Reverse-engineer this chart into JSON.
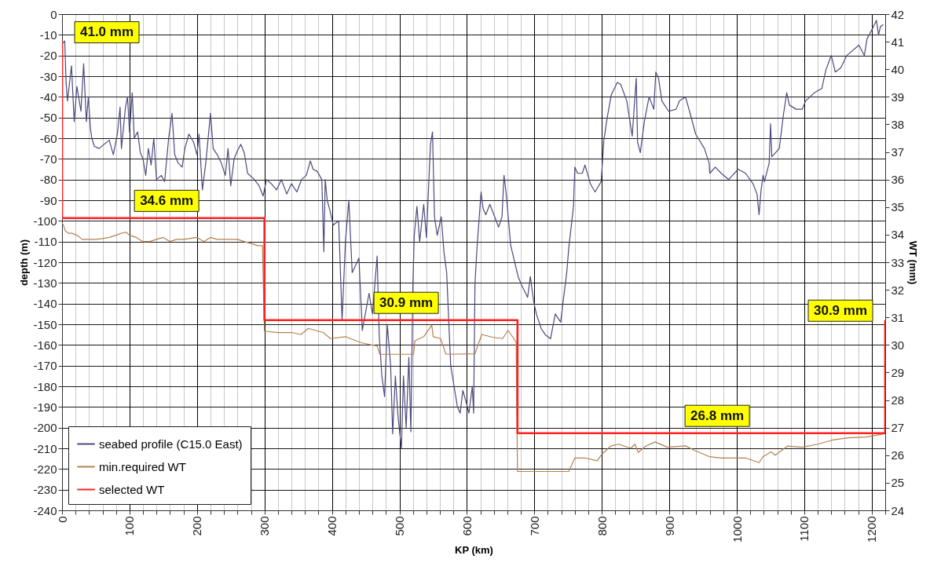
{
  "chart_data": {
    "type": "line",
    "xlabel": "KP (km)",
    "ylabel": "depth (m)",
    "y2label": "WT (mm)",
    "xlim": [
      0,
      1220
    ],
    "xticks": [
      0,
      {
        "value": 20,
        "label": null
      },
      {
        "value": 40,
        "label": null
      },
      {
        "value": 60,
        "label": null
      },
      {
        "value": 80,
        "label": null
      },
      100,
      {
        "value": 120,
        "label": null
      },
      {
        "value": 140,
        "label": null
      },
      {
        "value": 160,
        "label": null
      },
      {
        "value": 180,
        "label": null
      },
      200,
      {
        "value": 220,
        "label": null
      },
      {
        "value": 240,
        "label": null
      },
      {
        "value": 260,
        "label": null
      },
      {
        "value": 280,
        "label": null
      },
      300,
      {
        "value": 320,
        "label": null
      },
      {
        "value": 340,
        "label": null
      },
      {
        "value": 360,
        "label": null
      },
      {
        "value": 380,
        "label": null
      },
      400,
      {
        "value": 420,
        "label": null
      },
      {
        "value": 440,
        "label": null
      },
      {
        "value": 460,
        "label": null
      },
      {
        "value": 480,
        "label": null
      },
      500,
      {
        "value": 520,
        "label": null
      },
      {
        "value": 540,
        "label": null
      },
      {
        "value": 560,
        "label": null
      },
      {
        "value": 580,
        "label": null
      },
      600,
      {
        "value": 620,
        "label": null
      },
      {
        "value": 640,
        "label": null
      },
      {
        "value": 660,
        "label": null
      },
      {
        "value": 680,
        "label": null
      },
      700,
      {
        "value": 720,
        "label": null
      },
      {
        "value": 740,
        "label": null
      },
      {
        "value": 760,
        "label": null
      },
      {
        "value": 780,
        "label": null
      },
      800,
      {
        "value": 820,
        "label": null
      },
      {
        "value": 840,
        "label": null
      },
      {
        "value": 860,
        "label": null
      },
      {
        "value": 880,
        "label": null
      },
      900,
      {
        "value": 920,
        "label": null
      },
      {
        "value": 940,
        "label": null
      },
      {
        "value": 960,
        "label": null
      },
      {
        "value": 980,
        "label": null
      },
      1000,
      {
        "value": 1020,
        "label": null
      },
      {
        "value": 1040,
        "label": null
      },
      {
        "value": 1060,
        "label": null
      },
      {
        "value": 1080,
        "label": null
      },
      1100,
      {
        "value": 1120,
        "label": null
      },
      {
        "value": 1140,
        "label": null
      },
      {
        "value": 1160,
        "label": null
      },
      {
        "value": 1180,
        "label": null
      },
      1200,
      {
        "value": 1220,
        "label": null
      }
    ],
    "ylim": [
      -240,
      0
    ],
    "yticks": [
      -240,
      -230,
      -220,
      -210,
      -200,
      -190,
      -180,
      -170,
      -160,
      -150,
      -140,
      -130,
      -120,
      -110,
      -100,
      -90,
      -80,
      -70,
      -60,
      -50,
      -40,
      -30,
      -20,
      -10,
      0
    ],
    "y2lim": [
      24,
      42
    ],
    "y2ticks": [
      24,
      25,
      26,
      27,
      28,
      29,
      30,
      31,
      32,
      33,
      34,
      35,
      36,
      37,
      38,
      39,
      40,
      41,
      42
    ],
    "grid": true,
    "legend": "bottom left",
    "series": [
      {
        "name": "seabed profile (C15.0 East)",
        "color": "#4b4a7d",
        "x": [
          1,
          4,
          6,
          8,
          14,
          18,
          22,
          28,
          32,
          36,
          39,
          42,
          44,
          48,
          55,
          62,
          70,
          76,
          82,
          86,
          88,
          94,
          97,
          100,
          104,
          107,
          112,
          116,
          120,
          124,
          128,
          132,
          136,
          140,
          147,
          152,
          158,
          163,
          167,
          172,
          178,
          182,
          188,
          195,
          200,
          203,
          208,
          213,
          220,
          224,
          230,
          236,
          242,
          246,
          250,
          255,
          260,
          265,
          270,
          275,
          285,
          292,
          298,
          303,
          310,
          318,
          325,
          333,
          340,
          348,
          355,
          362,
          368,
          372,
          378,
          385,
          388,
          390,
          393,
          397,
          402,
          410,
          415,
          420,
          425,
          430,
          440,
          445,
          455,
          460,
          467,
          470,
          474,
          478,
          482,
          487,
          490,
          494,
          498,
          503,
          506,
          510,
          514,
          517,
          520,
          522,
          526,
          530,
          536,
          540,
          546,
          549,
          552,
          556,
          562,
          566,
          570,
          576,
          581,
          586,
          590,
          594,
          600,
          603,
          608,
          610,
          612,
          615,
          621,
          624,
          628,
          634,
          640,
          647,
          652,
          655,
          658,
          665,
          676,
          681,
          690,
          694,
          699,
          703,
          710,
          716,
          724,
          731,
          739,
          743,
          748,
          751,
          758,
          760,
          764,
          771,
          775,
          783,
          790,
          799,
          803,
          808,
          814,
          823,
          828,
          837,
          845,
          851,
          853,
          857,
          863,
          870,
          877,
          880,
          884,
          889,
          899,
          910,
          915,
          924,
          930,
          939,
          952,
          959,
          960,
          968,
          977,
          988,
          1002,
          1013,
          1024,
          1030,
          1033,
          1036,
          1039,
          1041,
          1048,
          1050,
          1052,
          1063,
          1069,
          1074,
          1078,
          1088,
          1097,
          1102,
          1115,
          1126,
          1132,
          1140,
          1146,
          1154,
          1163,
          1181,
          1189,
          1193,
          1201,
          1207,
          1210,
          1213,
          1217
        ],
        "values": [
          -14,
          -13,
          -33,
          -42,
          -25,
          -52,
          -35,
          -47,
          -24,
          -52,
          -40,
          -55,
          -60,
          -64,
          -65,
          -63,
          -61,
          -68,
          -58,
          -45,
          -65,
          -45,
          -40,
          -57,
          -38,
          -60,
          -57,
          -67,
          -70,
          -78,
          -65,
          -73,
          -60,
          -80,
          -78,
          -81,
          -60,
          -48,
          -68,
          -72,
          -74,
          -65,
          -58,
          -62,
          -68,
          -58,
          -85,
          -72,
          -48,
          -65,
          -68,
          -72,
          -78,
          -65,
          -83,
          -70,
          -66,
          -63,
          -67,
          -77,
          -80,
          -83,
          -88,
          -80,
          -82,
          -85,
          -80,
          -87,
          -82,
          -86,
          -80,
          -78,
          -71,
          -75,
          -76,
          -80,
          -115,
          -80,
          -90,
          -95,
          -102,
          -100,
          -148,
          -110,
          -90,
          -125,
          -118,
          -153,
          -135,
          -145,
          -117,
          -155,
          -175,
          -185,
          -150,
          -170,
          -203,
          -175,
          -195,
          -210,
          -175,
          -200,
          -166,
          -202,
          -130,
          -107,
          -93,
          -110,
          -92,
          -108,
          -63,
          -57,
          -98,
          -107,
          -98,
          -115,
          -125,
          -170,
          -180,
          -190,
          -193,
          -182,
          -189,
          -193,
          -180,
          -193,
          -130,
          -113,
          -86,
          -94,
          -97,
          -92,
          -97,
          -103,
          -98,
          -78,
          -86,
          -112,
          -127,
          -131,
          -137,
          -127,
          -139,
          -145,
          -152,
          -155,
          -157,
          -145,
          -149,
          -138,
          -125,
          -113,
          -93,
          -74,
          -77,
          -77,
          -73,
          -82,
          -86,
          -81,
          -61,
          -50,
          -39,
          -33,
          -34,
          -42,
          -59,
          -31,
          -62,
          -67,
          -52,
          -40,
          -46,
          -28,
          -31,
          -42,
          -47,
          -46,
          -42,
          -40,
          -47,
          -58,
          -65,
          -72,
          -77,
          -74,
          -77,
          -80,
          -75,
          -77,
          -82,
          -87,
          -97,
          -85,
          -78,
          -81,
          -72,
          -53,
          -69,
          -65,
          -49,
          -38,
          -44,
          -46,
          -46,
          -42,
          -38,
          -36,
          -27,
          -20,
          -28,
          -26,
          -20,
          -15,
          -20,
          -12,
          -7,
          -3,
          -10,
          -6,
          -5
        ]
      },
      {
        "name": "min.required WT",
        "color": "#b5804f",
        "axis": "y2",
        "x": [
          0,
          2,
          5,
          10,
          15,
          22,
          30,
          40,
          50,
          60,
          70,
          80,
          88,
          95,
          100,
          110,
          120,
          130,
          140,
          150,
          160,
          170,
          180,
          200,
          210,
          220,
          230,
          240,
          260,
          270,
          280,
          290,
          297,
          300,
          320,
          340,
          354,
          365,
          387,
          398,
          420,
          443,
          467,
          471,
          521,
          523,
          536,
          548,
          550,
          561,
          569,
          612,
          622,
          638,
          653,
          661,
          673,
          675,
          751,
          760,
          775,
          793,
          800,
          813,
          825,
          843,
          849,
          854,
          865,
          879,
          897,
          924,
          937,
          959,
          977,
          1013,
          1033,
          1039,
          1051,
          1057,
          1075,
          1097,
          1120,
          1142,
          1165,
          1192,
          1219
        ],
        "values": [
          34.43,
          34.35,
          34.13,
          34.05,
          34.05,
          33.98,
          33.83,
          33.83,
          33.83,
          33.86,
          33.9,
          33.98,
          34.05,
          34.09,
          33.98,
          33.9,
          33.75,
          33.75,
          33.83,
          33.9,
          33.75,
          33.83,
          33.83,
          33.9,
          33.75,
          33.9,
          33.83,
          33.83,
          33.83,
          33.75,
          33.68,
          33.6,
          33.6,
          30.5,
          30.45,
          30.45,
          30.38,
          30.6,
          30.45,
          30.23,
          30.3,
          30.08,
          29.96,
          29.66,
          29.66,
          30.15,
          30.3,
          30.72,
          30.3,
          30.23,
          29.66,
          29.68,
          30.38,
          30.28,
          30.23,
          30.53,
          30.11,
          25.41,
          25.41,
          25.9,
          25.9,
          25.8,
          26.03,
          26.33,
          26.4,
          26.25,
          26.4,
          26.1,
          26.33,
          26.48,
          26.29,
          26.34,
          26.18,
          25.95,
          25.9,
          25.9,
          25.73,
          25.95,
          26.12,
          26.0,
          26.33,
          26.29,
          26.4,
          26.55,
          26.63,
          26.66,
          26.78
        ]
      },
      {
        "name": "selected WT",
        "color": "#ff2020",
        "axis": "y2",
        "x": [
          0,
          0,
          155,
          300,
          300,
          510,
          675,
          675,
          971,
          1220,
          1220
        ],
        "values": [
          41.0,
          34.6,
          34.6,
          34.6,
          30.9,
          30.9,
          30.9,
          26.8,
          26.8,
          26.8,
          30.9
        ],
        "value_labels": [
          "41.0 mm",
          null,
          "34.6 mm",
          null,
          null,
          "30.9 mm",
          null,
          null,
          "26.8 mm",
          null,
          "30.9 mm"
        ]
      }
    ]
  }
}
